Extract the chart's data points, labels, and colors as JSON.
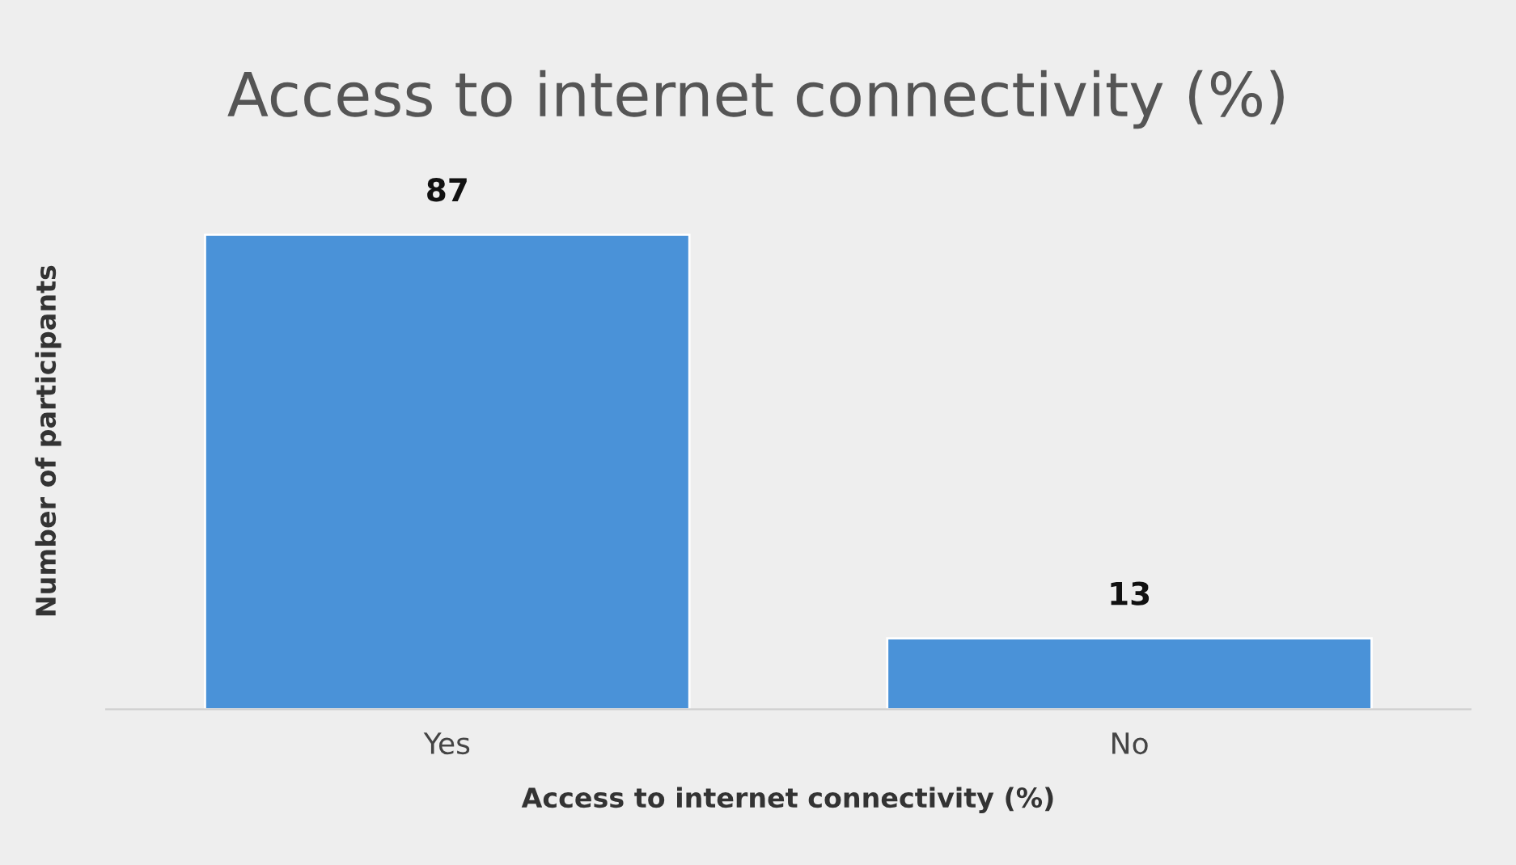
{
  "chart_data": {
    "type": "bar",
    "title": "Access to internet connectivity (%)",
    "xlabel": "Access to internet connectivity (%)",
    "ylabel": "Number of participants",
    "categories": [
      "Yes",
      "No"
    ],
    "values": [
      87,
      13
    ],
    "color": "#4a92d8",
    "data_labels": true,
    "grid": false,
    "legend": false
  }
}
